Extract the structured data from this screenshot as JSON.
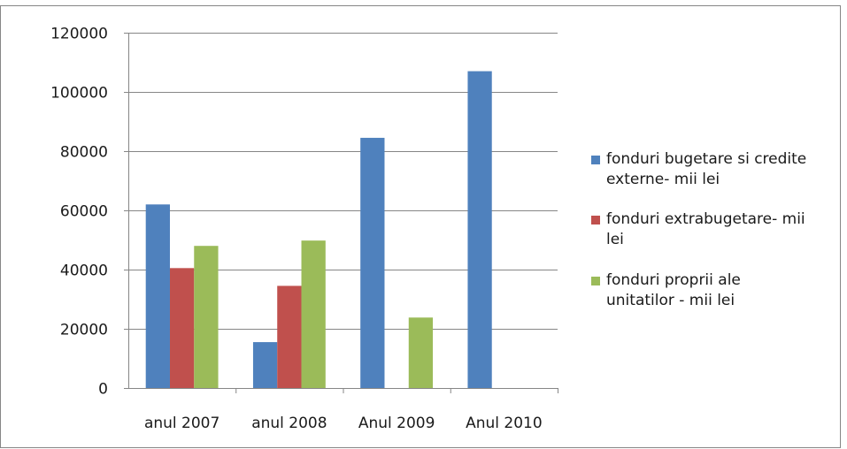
{
  "chart_data": {
    "type": "bar",
    "title": "",
    "xlabel": "",
    "ylabel": "",
    "categories": [
      "anul 2007",
      "anul 2008",
      "Anul 2009",
      "Anul 2010"
    ],
    "series": [
      {
        "name": "fonduri bugetare si credite externe- mii lei",
        "color": "#4f81bd",
        "values": [
          62000,
          15500,
          84500,
          107000
        ]
      },
      {
        "name": "fonduri extrabugetare- mii lei",
        "color": "#c0504d",
        "values": [
          40500,
          34500,
          0,
          0
        ]
      },
      {
        "name": "fonduri proprii ale unitatilor - mii lei",
        "color": "#9bbb59",
        "values": [
          48000,
          49800,
          23800,
          0
        ]
      }
    ],
    "ylim": [
      0,
      120000
    ],
    "yticks": [
      "0",
      "20000",
      "40000",
      "60000",
      "80000",
      "100000",
      "120000"
    ],
    "grid": true,
    "legend_position": "right"
  }
}
